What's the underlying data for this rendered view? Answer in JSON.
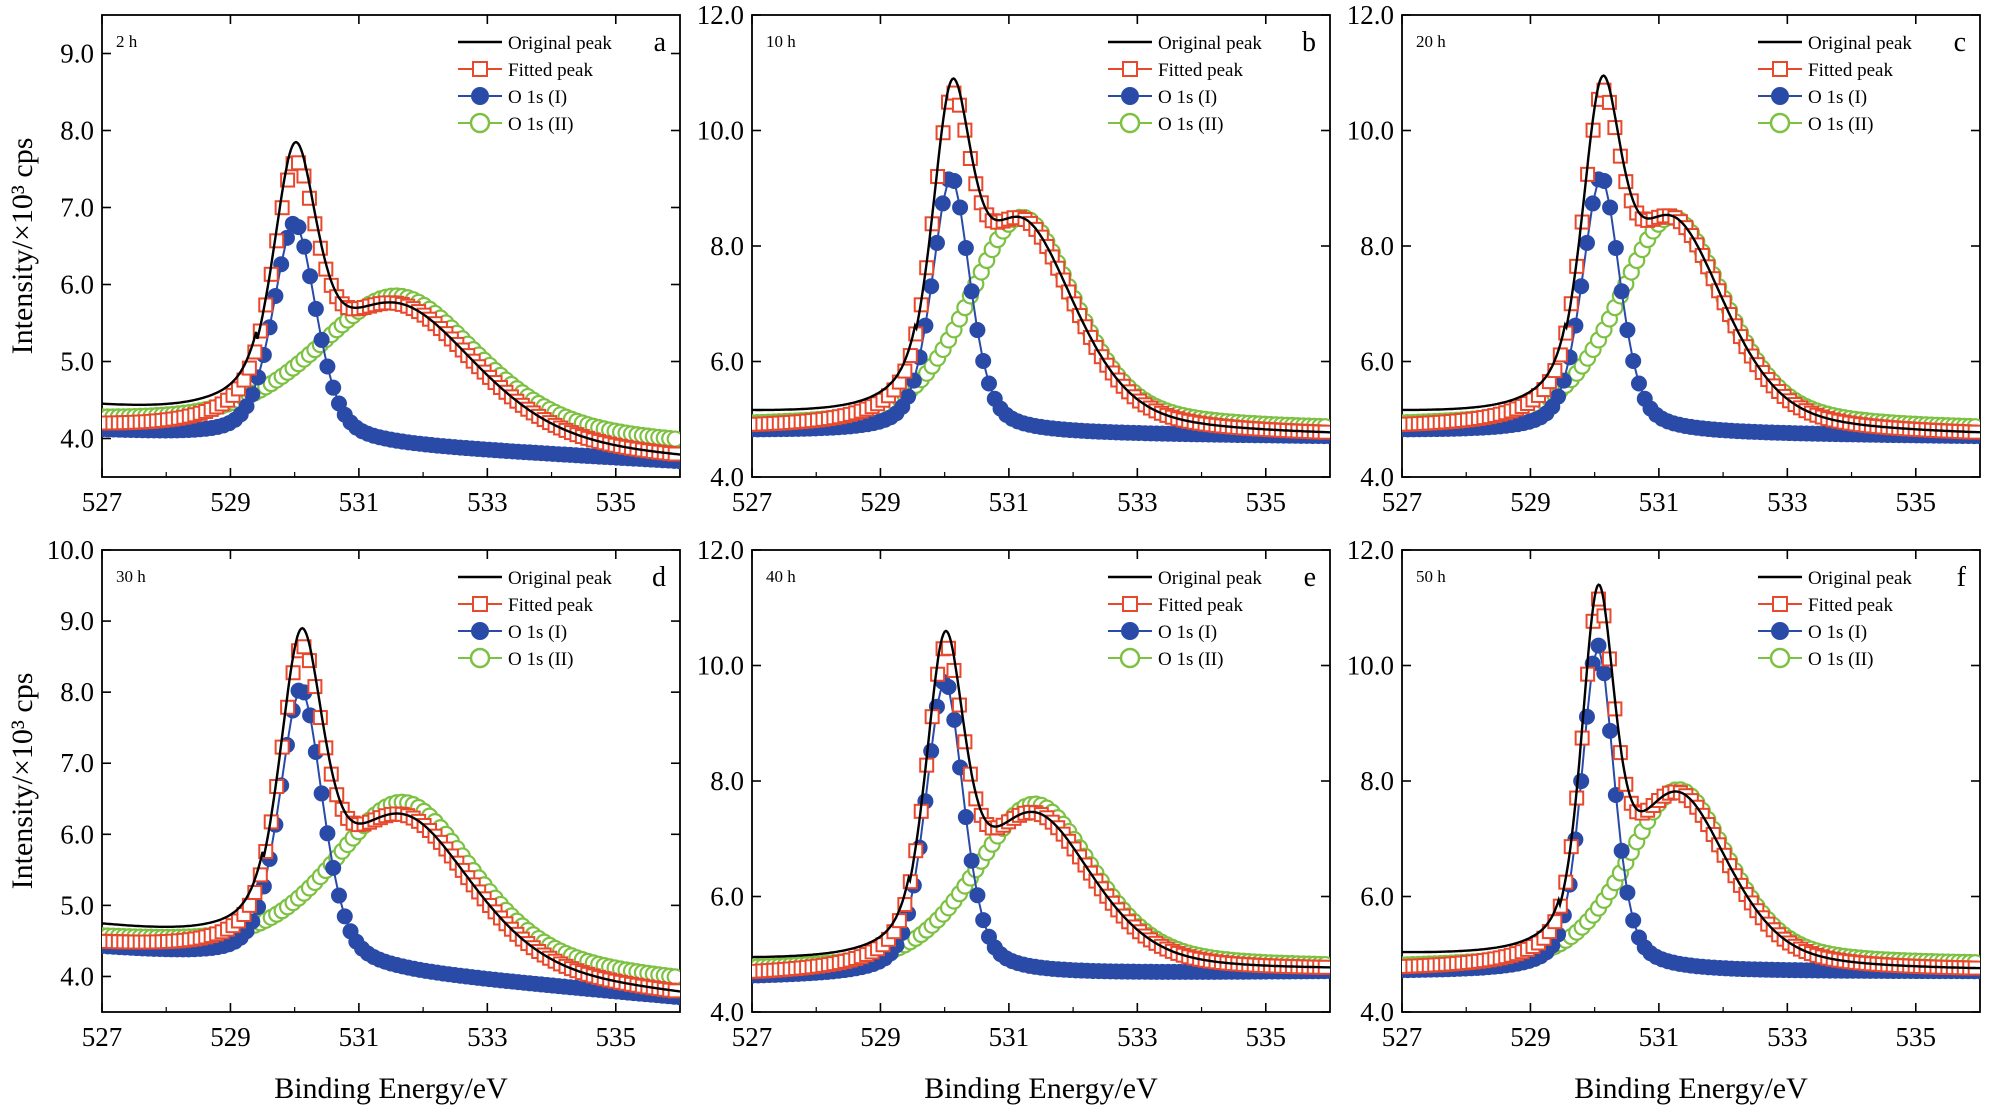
{
  "figure": {
    "y_axis_label": "Intensity/×10³ cps",
    "x_axis_label": "Binding Energy/eV"
  },
  "legend": [
    "Original peak",
    "Fitted peak",
    "O 1s  (I)",
    "O 1s (II)"
  ],
  "colors": {
    "original": "#000000",
    "fitted": "#e8482c",
    "o1s_I": "#2a4aa8",
    "o1s_II": "#7dc142"
  },
  "chart_data": [
    {
      "type": "line",
      "panel": "a",
      "time": "2 h",
      "xlim": [
        527,
        536
      ],
      "ylim": [
        3.5,
        9.5
      ],
      "xticks": [
        "527",
        "529",
        "531",
        "533",
        "535"
      ],
      "yticks": [
        "4.0",
        "5.0",
        "6.0",
        "7.0",
        "8.0",
        "9.0"
      ],
      "baseline_low": 4.1,
      "baseline_high": 3.7,
      "peaks": {
        "o1s_I": {
          "x0": 530.0,
          "height": 6.8,
          "width": 0.4
        },
        "o1s_II": {
          "x0": 531.6,
          "height": 5.85,
          "width": 1.5,
          "offset": 4.2,
          "tail_end": 3.9
        },
        "original": {
          "x0": 530.0,
          "height": 7.85
        }
      },
      "series": [
        {
          "name": "Original peak",
          "values": "computed"
        },
        {
          "name": "Fitted peak",
          "values": "computed"
        },
        {
          "name": "O 1s  (I)",
          "values": "computed"
        },
        {
          "name": "O 1s (II)",
          "values": "computed"
        }
      ]
    },
    {
      "type": "line",
      "panel": "b",
      "time": "10 h",
      "xlim": [
        527,
        536
      ],
      "ylim": [
        4.0,
        12.0
      ],
      "xticks": [
        "527",
        "529",
        "531",
        "533",
        "535"
      ],
      "yticks": [
        "4.0",
        "6.0",
        "8.0",
        "10.0",
        "12.0"
      ],
      "baseline_low": 4.8,
      "baseline_high": 4.7,
      "peaks": {
        "o1s_I": {
          "x0": 530.1,
          "height": 9.2,
          "width": 0.35
        },
        "o1s_II": {
          "x0": 531.2,
          "height": 8.5,
          "width": 1.0,
          "offset": 4.85,
          "tail_end": 4.8
        },
        "original": {
          "x0": 530.15,
          "height": 10.9
        }
      },
      "series": [
        {
          "name": "Original peak",
          "values": "computed"
        },
        {
          "name": "Fitted peak",
          "values": "computed"
        },
        {
          "name": "O 1s  (I)",
          "values": "computed"
        },
        {
          "name": "O 1s (II)",
          "values": "computed"
        }
      ]
    },
    {
      "type": "line",
      "panel": "c",
      "time": "20 h",
      "xlim": [
        527,
        536
      ],
      "ylim": [
        4.0,
        12.0
      ],
      "xticks": [
        "527",
        "529",
        "531",
        "533",
        "535"
      ],
      "yticks": [
        "4.0",
        "6.0",
        "8.0",
        "10.0",
        "12.0"
      ],
      "baseline_low": 4.8,
      "baseline_high": 4.7,
      "peaks": {
        "o1s_I": {
          "x0": 530.1,
          "height": 9.2,
          "width": 0.35
        },
        "o1s_II": {
          "x0": 531.2,
          "height": 8.5,
          "width": 1.0,
          "offset": 4.85,
          "tail_end": 4.8
        },
        "original": {
          "x0": 530.15,
          "height": 10.95
        }
      },
      "series": [
        {
          "name": "Original peak",
          "values": "computed"
        },
        {
          "name": "Fitted peak",
          "values": "computed"
        },
        {
          "name": "O 1s  (I)",
          "values": "computed"
        },
        {
          "name": "O 1s (II)",
          "values": "computed"
        }
      ]
    },
    {
      "type": "line",
      "panel": "d",
      "time": "30 h",
      "xlim": [
        527,
        536
      ],
      "ylim": [
        3.5,
        10.0
      ],
      "xticks": [
        "527",
        "529",
        "531",
        "533",
        "535"
      ],
      "yticks": [
        "4.0",
        "5.0",
        "6.0",
        "7.0",
        "8.0",
        "9.0",
        "10.0"
      ],
      "baseline_low": 4.4,
      "baseline_high": 3.7,
      "peaks": {
        "o1s_I": {
          "x0": 530.1,
          "height": 8.05,
          "width": 0.4
        },
        "o1s_II": {
          "x0": 531.7,
          "height": 6.45,
          "width": 1.3,
          "offset": 4.5,
          "tail_end": 3.9
        },
        "original": {
          "x0": 530.1,
          "height": 8.9
        }
      },
      "series": [
        {
          "name": "Original peak",
          "values": "computed"
        },
        {
          "name": "Fitted peak",
          "values": "computed"
        },
        {
          "name": "O 1s  (I)",
          "values": "computed"
        },
        {
          "name": "O 1s (II)",
          "values": "computed"
        }
      ]
    },
    {
      "type": "line",
      "panel": "e",
      "time": "40 h",
      "xlim": [
        527,
        536
      ],
      "ylim": [
        4.0,
        12.0
      ],
      "xticks": [
        "527",
        "529",
        "531",
        "533",
        "535"
      ],
      "yticks": [
        "4.0",
        "6.0",
        "8.0",
        "10.0",
        "12.0"
      ],
      "baseline_low": 4.6,
      "baseline_high": 4.7,
      "peaks": {
        "o1s_I": {
          "x0": 530.0,
          "height": 9.75,
          "width": 0.35
        },
        "o1s_II": {
          "x0": 531.4,
          "height": 7.6,
          "width": 1.1,
          "offset": 4.7,
          "tail_end": 4.75
        },
        "original": {
          "x0": 530.05,
          "height": 10.6
        }
      },
      "series": [
        {
          "name": "Original peak",
          "values": "computed"
        },
        {
          "name": "Fitted peak",
          "values": "computed"
        },
        {
          "name": "O 1s  (I)",
          "values": "computed"
        },
        {
          "name": "O 1s (II)",
          "values": "computed"
        }
      ]
    },
    {
      "type": "line",
      "panel": "f",
      "time": "50 h",
      "xlim": [
        527,
        536
      ],
      "ylim": [
        4.0,
        12.0
      ],
      "xticks": [
        "527",
        "529",
        "531",
        "533",
        "535"
      ],
      "yticks": [
        "4.0",
        "6.0",
        "8.0",
        "10.0",
        "12.0"
      ],
      "baseline_low": 4.7,
      "baseline_high": 4.7,
      "peaks": {
        "o1s_I": {
          "x0": 530.05,
          "height": 10.35,
          "width": 0.3
        },
        "o1s_II": {
          "x0": 531.3,
          "height": 7.85,
          "width": 0.95,
          "offset": 4.75,
          "tail_end": 4.8
        },
        "original": {
          "x0": 530.05,
          "height": 11.4
        }
      },
      "series": [
        {
          "name": "Original peak",
          "values": "computed"
        },
        {
          "name": "Fitted peak",
          "values": "computed"
        },
        {
          "name": "O 1s  (I)",
          "values": "computed"
        },
        {
          "name": "O 1s (II)",
          "values": "computed"
        }
      ]
    }
  ]
}
